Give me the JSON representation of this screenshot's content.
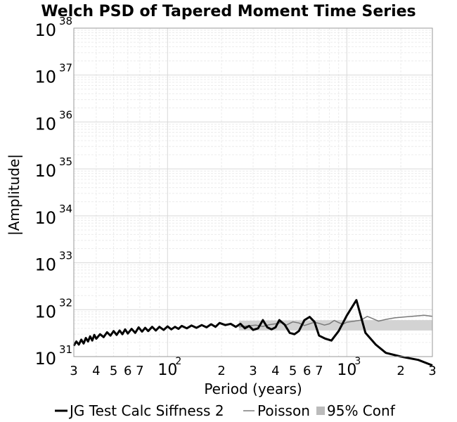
{
  "chart_data": {
    "type": "line",
    "title": "Welch PSD of Tapered Moment Time Series",
    "xlabel": "Period (years)",
    "ylabel": "|Amplitude|",
    "x_scale": "log",
    "y_scale": "log",
    "xlim": [
      30,
      3000
    ],
    "ylim": [
      1e+31,
      1e+38
    ],
    "grid": true,
    "legend_position": "bottom",
    "x_ticks": [
      {
        "value": 30,
        "base": "3",
        "exp": ""
      },
      {
        "value": 40,
        "base": "4",
        "exp": ""
      },
      {
        "value": 50,
        "base": "5",
        "exp": ""
      },
      {
        "value": 60,
        "base": "6",
        "exp": ""
      },
      {
        "value": 70,
        "base": "7",
        "exp": ""
      },
      {
        "value": 100,
        "base": "10",
        "exp": "2"
      },
      {
        "value": 200,
        "base": "2",
        "exp": ""
      },
      {
        "value": 300,
        "base": "3",
        "exp": ""
      },
      {
        "value": 400,
        "base": "4",
        "exp": ""
      },
      {
        "value": 500,
        "base": "5",
        "exp": ""
      },
      {
        "value": 600,
        "base": "6",
        "exp": ""
      },
      {
        "value": 700,
        "base": "7",
        "exp": ""
      },
      {
        "value": 1000,
        "base": "10",
        "exp": "3"
      },
      {
        "value": 2000,
        "base": "2",
        "exp": ""
      },
      {
        "value": 3000,
        "base": "3",
        "exp": ""
      }
    ],
    "y_ticks": [
      {
        "value": 1e+31,
        "base": "10",
        "exp": "31"
      },
      {
        "value": 1e+32,
        "base": "10",
        "exp": "32"
      },
      {
        "value": 1e+33,
        "base": "10",
        "exp": "33"
      },
      {
        "value": 1e+34,
        "base": "10",
        "exp": "34"
      },
      {
        "value": 1e+35,
        "base": "10",
        "exp": "35"
      },
      {
        "value": 1e+36,
        "base": "10",
        "exp": "36"
      },
      {
        "value": 1e+37,
        "base": "10",
        "exp": "37"
      },
      {
        "value": 1e+38,
        "base": "10",
        "exp": "38"
      }
    ],
    "series": [
      {
        "name": "JG Test Calc Siffness 2",
        "color": "#000000",
        "x": [
          30,
          31,
          32,
          33,
          34,
          35,
          36,
          37,
          38,
          39,
          40,
          42,
          44,
          46,
          48,
          50,
          52,
          54,
          56,
          58,
          60,
          63,
          66,
          69,
          72,
          75,
          78,
          82,
          86,
          90,
          95,
          100,
          105,
          110,
          115,
          120,
          128,
          136,
          145,
          155,
          165,
          175,
          185,
          195,
          210,
          225,
          240,
          255,
          270,
          285,
          300,
          320,
          340,
          360,
          380,
          400,
          420,
          450,
          480,
          510,
          540,
          580,
          620,
          660,
          700,
          760,
          820,
          900,
          1000,
          1130,
          1270,
          1450,
          1650,
          2000,
          2500,
          3000
        ],
        "y": [
          1.7e+31,
          2.1e+31,
          1.8e+31,
          2.3e+31,
          1.9e+31,
          2.5e+31,
          2.1e+31,
          2.7e+31,
          2.2e+31,
          2.9e+31,
          2.4e+31,
          3e+31,
          2.6e+31,
          3.3e+31,
          2.8e+31,
          3.5e+31,
          2.9e+31,
          3.6e+31,
          3e+31,
          3.8e+31,
          3.1e+31,
          3.9e+31,
          3.2e+31,
          4.2e+31,
          3.4e+31,
          4.1e+31,
          3.5e+31,
          4.3e+31,
          3.6e+31,
          4.3e+31,
          3.7e+31,
          4.4e+31,
          3.8e+31,
          4.3e+31,
          3.9e+31,
          4.5e+31,
          4e+31,
          4.6e+31,
          4.1e+31,
          4.7e+31,
          4.2e+31,
          4.9e+31,
          4.3e+31,
          5.2e+31,
          4.7e+31,
          5e+31,
          4.3e+31,
          5e+31,
          4e+31,
          4.5e+31,
          3.7e+31,
          4e+31,
          6e+31,
          4.2e+31,
          3.8e+31,
          4.2e+31,
          6e+31,
          4.8e+31,
          3.2e+31,
          3e+31,
          3.5e+31,
          6e+31,
          7e+31,
          5.5e+31,
          2.8e+31,
          2.4e+31,
          2.2e+31,
          3.5e+31,
          7.5e+31,
          1.6e+32,
          3.2e+31,
          1.8e+31,
          1.2e+31,
          1e+31,
          8.5e+30,
          6.5e+30
        ]
      },
      {
        "name": "Poisson",
        "color": "#7a7a7a",
        "x": [
          250,
          280,
          310,
          340,
          370,
          400,
          430,
          460,
          500,
          540,
          580,
          620,
          660,
          700,
          750,
          800,
          850,
          900,
          950,
          1000,
          1100,
          1200,
          1300,
          1400,
          1500,
          1650,
          1850,
          2100,
          2400,
          2700,
          3000
        ],
        "y": [
          4.3e+31,
          4.5e+31,
          4.7e+31,
          4.4e+31,
          4.8e+31,
          5e+31,
          5.3e+31,
          4.7e+31,
          5.5e+31,
          5.2e+31,
          4.6e+31,
          5e+31,
          5.4e+31,
          5.1e+31,
          4.7e+31,
          5e+31,
          5.9e+31,
          5.3e+31,
          4.9e+31,
          5.4e+31,
          5.7e+31,
          6e+31,
          7.2e+31,
          6.4e+31,
          5.7e+31,
          6.2e+31,
          6.7e+31,
          7e+31,
          7.3e+31,
          7.6e+31,
          7.2e+31
        ]
      }
    ],
    "confidence_band": {
      "name": "95% Conf",
      "color": "#d3d3d3",
      "x": [
        250,
        400,
        1000,
        3000
      ],
      "lower": [
        3.6e+31,
        3.6e+31,
        3.6e+31,
        3.6e+31
      ],
      "upper": [
        5.8e+31,
        5.9e+31,
        6e+31,
        6e+31
      ]
    }
  }
}
